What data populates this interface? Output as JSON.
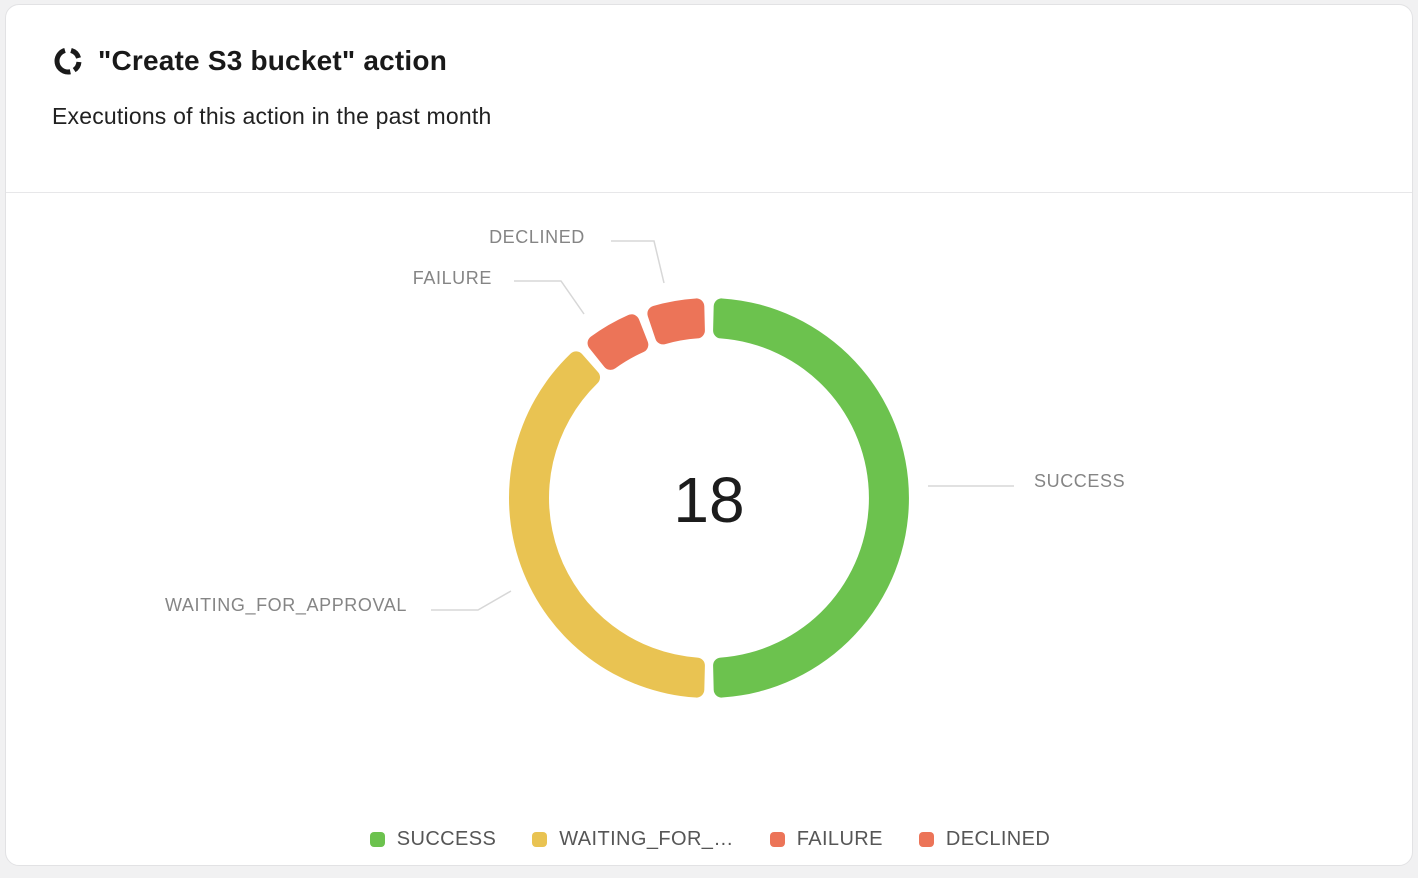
{
  "header": {
    "icon": "donut-chart-icon",
    "title": "\"Create S3 bucket\" action",
    "subtitle": "Executions of this action in the past month"
  },
  "chart_data": {
    "type": "pie",
    "donut": true,
    "title": "\"Create S3 bucket\" action",
    "subtitle": "Executions of this action in the past month",
    "center_label": "18",
    "total": 18,
    "series": [
      {
        "name": "SUCCESS",
        "value": 9,
        "color": "#6CC24E"
      },
      {
        "name": "WAITING_FOR_APPROVAL",
        "value": 7,
        "color": "#E9C352"
      },
      {
        "name": "FAILURE",
        "value": 1,
        "color": "#EC7458"
      },
      {
        "name": "DECLINED",
        "value": 1,
        "color": "#EC7458"
      }
    ],
    "legend_position": "bottom",
    "legend": [
      {
        "label": "SUCCESS",
        "color": "#6CC24E"
      },
      {
        "label": "WAITING_FOR_…",
        "color": "#E9C352"
      },
      {
        "label": "FAILURE",
        "color": "#EC7458"
      },
      {
        "label": "DECLINED",
        "color": "#EC7458"
      }
    ],
    "colors": {
      "success": "#6CC24E",
      "waiting_for_approval": "#E9C352",
      "failure": "#EC7458",
      "declined": "#EC7458",
      "callout_text": "#858585",
      "callout_line": "#d7d7d7",
      "center_text": "#1c1c1c"
    }
  }
}
